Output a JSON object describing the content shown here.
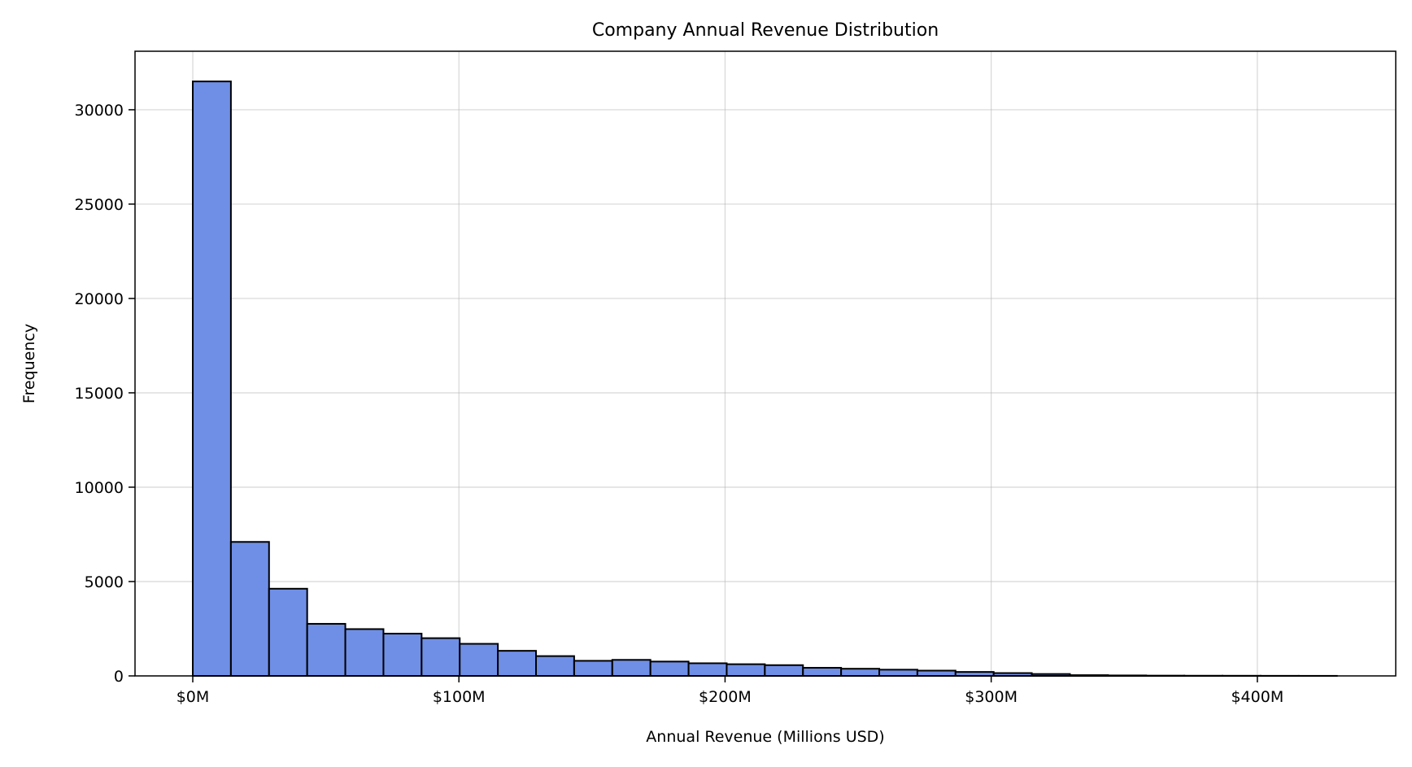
{
  "chart_data": {
    "type": "bar",
    "title": "Company Annual Revenue Distribution",
    "xlabel": "Annual Revenue (Millions USD)",
    "ylabel": "Frequency",
    "xlim": [
      -21.7,
      452
    ],
    "ylim": [
      0,
      33100
    ],
    "grid": true,
    "bar_color": "#6f8fe7",
    "edge_color": "#000000",
    "x_ticks": [
      0,
      100,
      200,
      300,
      400
    ],
    "x_tick_labels": [
      "$0M",
      "$100M",
      "$200M",
      "$300M",
      "$400M"
    ],
    "y_ticks": [
      0,
      5000,
      10000,
      15000,
      20000,
      25000,
      30000
    ],
    "y_tick_labels": [
      "0",
      "5000",
      "10000",
      "15000",
      "20000",
      "25000",
      "30000"
    ],
    "bin_start": 0,
    "bin_width": 14.33,
    "values": [
      31500,
      7100,
      4620,
      2760,
      2480,
      2240,
      2000,
      1700,
      1330,
      1050,
      800,
      850,
      760,
      670,
      620,
      570,
      430,
      380,
      330,
      280,
      210,
      150,
      100,
      40,
      25,
      15,
      10,
      8,
      5,
      3
    ]
  }
}
